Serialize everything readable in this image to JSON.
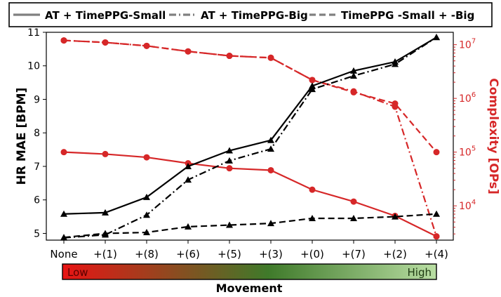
{
  "chart_data": {
    "type": "line",
    "categories": [
      "None",
      "+(1)",
      "+(8)",
      "+(6)",
      "+(5)",
      "+(3)",
      "+(0)",
      "+(7)",
      "+(2)",
      "+(4)"
    ],
    "ylabel_left": "HR MAE [BPM]",
    "ylabel_right": "Complexity [OPs]",
    "xlabel": "Movement",
    "y_left_ticks": [
      "5",
      "6",
      "7",
      "8",
      "9",
      "10",
      "11"
    ],
    "y_left_range": [
      4.8,
      11.0
    ],
    "y_right_scale": "log",
    "y_right_ticks": [
      {
        "base": "10",
        "exp": "4",
        "value": 10000
      },
      {
        "base": "10",
        "exp": "5",
        "value": 100000
      },
      {
        "base": "10",
        "exp": "6",
        "value": 1000000
      },
      {
        "base": "10",
        "exp": "7",
        "value": 10000000
      }
    ],
    "y_right_range": [
      2300,
      17000000
    ],
    "legend": {
      "placement": "top",
      "entries": [
        "AT + TimePPG-Small",
        "AT + TimePPG-Big",
        "TimePPG -Small + -Big"
      ]
    },
    "mae_series": [
      {
        "legend_index": 0,
        "style": "solid",
        "color": "#000000",
        "values": [
          5.58,
          5.62,
          6.08,
          7.0,
          7.47,
          7.78,
          9.4,
          9.85,
          10.12,
          10.85
        ]
      },
      {
        "legend_index": 1,
        "style": "dashdot",
        "color": "#000000",
        "values": [
          4.87,
          4.96,
          5.55,
          6.6,
          7.17,
          7.52,
          9.3,
          9.7,
          10.05,
          10.85
        ]
      },
      {
        "legend_index": 2,
        "style": "dashed",
        "color": "#000000",
        "values": [
          4.88,
          5.0,
          5.03,
          5.2,
          5.25,
          5.3,
          5.45,
          5.45,
          5.5,
          5.58
        ]
      }
    ],
    "complexity_series": [
      {
        "legend_index": 0,
        "style": "solid",
        "color": "#d62728",
        "values": [
          100000,
          92000,
          80000,
          62000,
          50000,
          46000,
          20000,
          12000,
          6500,
          2700
        ]
      },
      {
        "legend_index": 1,
        "style": "dashdot",
        "color": "#d62728",
        "values": [
          12000000,
          11000000,
          9500000,
          7500000,
          6200000,
          5700000,
          2200000,
          1350000,
          700000,
          2700
        ]
      },
      {
        "legend_index": 2,
        "style": "dashed",
        "color": "#d62728",
        "values": [
          12000000,
          11000000,
          9500000,
          7500000,
          6200000,
          5700000,
          2200000,
          1300000,
          800000,
          100000
        ]
      }
    ],
    "movement_bar": {
      "low_label": "Low",
      "high_label": "High",
      "gradient": [
        "#e81414",
        "#3f7a2a",
        "#b9dea3"
      ]
    }
  },
  "colors": {
    "left_axis": "#000000",
    "right_axis": "#d62728",
    "legend_line": "#808080"
  }
}
